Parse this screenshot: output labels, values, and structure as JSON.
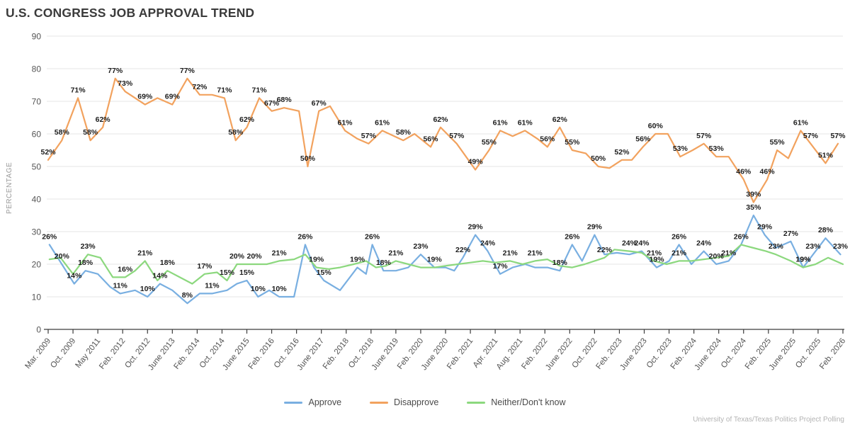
{
  "title": "U.S. CONGRESS JOB APPROVAL TREND",
  "footer": "University of Texas/Texas Politics Project Polling",
  "chart_data": {
    "type": "line",
    "title": "U.S. CONGRESS JOB APPROVAL TREND",
    "ylabel": "PERCENTAGE",
    "ylim": [
      0,
      90
    ],
    "grid": "horizontal",
    "legend_position": "bottom-center",
    "y_ticks": [
      0,
      10,
      20,
      30,
      40,
      50,
      60,
      70,
      80,
      90
    ],
    "x_tick_labels": [
      "Mar. 2009",
      "Oct. 2009",
      "May 2011",
      "Feb. 2012",
      "Oct. 2012",
      "June 2013",
      "Feb. 2014",
      "Oct. 2014",
      "June 2015",
      "Feb. 2016",
      "Oct. 2016",
      "June 2017",
      "Feb. 2018",
      "Oct. 2018",
      "June 2019",
      "Feb. 2020",
      "June 2020",
      "Feb. 2021",
      "Apr. 2021",
      "Aug. 2021",
      "Feb. 2022",
      "June 2022",
      "Oct. 2022",
      "Feb. 2023",
      "June 2023",
      "Oct. 2023",
      "Feb. 2024",
      "June 2024",
      "Oct. 2024",
      "Feb. 2025",
      "June 2025",
      "Oct. 2025",
      "Feb. 2026"
    ],
    "x_axis_note": "points given as [tick_position, percent_value, has_label]",
    "series": [
      {
        "name": "Approve",
        "color": "#79AFE1",
        "labeled_values": [
          26,
          20,
          14,
          18,
          11,
          10,
          14,
          8,
          11,
          15,
          10,
          26,
          15,
          19,
          26,
          18,
          23,
          19,
          22,
          29,
          24,
          17,
          18,
          26,
          29,
          24,
          19,
          26,
          24,
          20,
          21,
          35,
          29,
          27,
          19,
          23,
          28,
          23
        ],
        "points": [
          [
            0.05,
            26,
            1
          ],
          [
            0.55,
            20,
            1
          ],
          [
            1.05,
            14,
            1
          ],
          [
            1.5,
            18,
            1
          ],
          [
            2,
            17,
            0
          ],
          [
            2.5,
            13,
            0
          ],
          [
            2.9,
            11,
            1
          ],
          [
            3.5,
            12,
            0
          ],
          [
            4,
            10,
            1
          ],
          [
            4.5,
            14,
            1
          ],
          [
            5,
            12,
            0
          ],
          [
            5.6,
            8,
            1
          ],
          [
            6.1,
            11,
            0
          ],
          [
            6.6,
            11,
            1
          ],
          [
            7.2,
            12,
            0
          ],
          [
            7.6,
            14,
            0
          ],
          [
            8,
            15,
            1
          ],
          [
            8.45,
            10,
            1
          ],
          [
            8.9,
            12,
            0
          ],
          [
            9.3,
            10,
            1
          ],
          [
            9.9,
            10,
            0
          ],
          [
            10.35,
            26,
            1
          ],
          [
            10.7,
            19,
            0
          ],
          [
            11.1,
            15,
            1
          ],
          [
            11.75,
            12,
            0
          ],
          [
            12.45,
            19,
            1
          ],
          [
            12.8,
            17,
            0
          ],
          [
            13.05,
            26,
            1
          ],
          [
            13.5,
            18,
            1
          ],
          [
            14,
            18,
            0
          ],
          [
            14.5,
            19,
            0
          ],
          [
            15,
            23,
            1
          ],
          [
            15.55,
            19,
            1
          ],
          [
            16,
            19,
            0
          ],
          [
            16.35,
            18,
            0
          ],
          [
            16.7,
            22,
            1
          ],
          [
            17.2,
            29,
            1
          ],
          [
            17.7,
            24,
            1
          ],
          [
            18.2,
            17,
            1
          ],
          [
            18.7,
            19,
            0
          ],
          [
            19.2,
            20,
            0
          ],
          [
            19.6,
            19,
            0
          ],
          [
            20.1,
            19,
            0
          ],
          [
            20.6,
            18,
            1
          ],
          [
            21.1,
            26,
            1
          ],
          [
            21.5,
            21,
            0
          ],
          [
            22,
            29,
            1
          ],
          [
            22.4,
            23,
            0
          ],
          [
            22.9,
            23.5,
            0
          ],
          [
            23.4,
            23,
            0
          ],
          [
            23.9,
            24,
            1
          ],
          [
            24.5,
            19,
            1
          ],
          [
            25,
            21,
            0
          ],
          [
            25.4,
            26,
            1
          ],
          [
            25.9,
            20,
            0
          ],
          [
            26.4,
            24,
            1
          ],
          [
            26.9,
            20,
            1
          ],
          [
            27.4,
            21,
            1
          ],
          [
            27.9,
            26,
            0
          ],
          [
            28.4,
            35,
            1
          ],
          [
            28.85,
            29,
            1
          ],
          [
            29.3,
            25,
            0
          ],
          [
            29.9,
            27,
            1
          ],
          [
            30.4,
            19,
            1
          ],
          [
            30.8,
            23,
            1
          ],
          [
            31.3,
            28,
            1
          ],
          [
            31.9,
            23,
            1
          ]
        ]
      },
      {
        "name": "Disapprove",
        "color": "#F2A25E",
        "labeled_values": [
          52,
          58,
          71,
          58,
          62,
          77,
          73,
          69,
          69,
          77,
          72,
          71,
          58,
          62,
          71,
          67,
          68,
          50,
          67,
          61,
          57,
          61,
          58,
          56,
          62,
          57,
          49,
          55,
          61,
          61,
          56,
          62,
          55,
          50,
          52,
          56,
          60,
          53,
          57,
          53,
          46,
          39,
          46,
          55,
          61,
          57,
          51,
          57
        ],
        "points": [
          [
            0,
            52,
            1
          ],
          [
            0.55,
            58,
            1
          ],
          [
            1.2,
            71,
            1
          ],
          [
            1.7,
            58,
            1
          ],
          [
            2.2,
            62,
            1
          ],
          [
            2.7,
            77,
            1
          ],
          [
            3.1,
            73,
            1
          ],
          [
            3.9,
            69,
            1
          ],
          [
            4.4,
            71,
            0
          ],
          [
            5,
            69,
            1
          ],
          [
            5.6,
            77,
            1
          ],
          [
            6.1,
            72,
            1
          ],
          [
            6.6,
            72,
            0
          ],
          [
            7.1,
            71,
            1
          ],
          [
            7.55,
            58,
            1
          ],
          [
            8,
            62,
            1
          ],
          [
            8.5,
            71,
            1
          ],
          [
            9,
            67,
            1
          ],
          [
            9.5,
            68,
            1
          ],
          [
            10.1,
            67,
            0
          ],
          [
            10.45,
            50,
            1
          ],
          [
            10.9,
            67,
            1
          ],
          [
            11.35,
            68.5,
            0
          ],
          [
            11.95,
            61,
            1
          ],
          [
            12.45,
            58.5,
            0
          ],
          [
            12.9,
            57,
            1
          ],
          [
            13.45,
            61,
            1
          ],
          [
            14.3,
            58,
            1
          ],
          [
            14.75,
            60,
            0
          ],
          [
            15.4,
            56,
            1
          ],
          [
            15.8,
            62,
            1
          ],
          [
            16.45,
            57,
            1
          ],
          [
            17.2,
            49,
            1
          ],
          [
            17.75,
            55,
            1
          ],
          [
            18.2,
            61,
            1
          ],
          [
            18.7,
            59.3,
            0
          ],
          [
            19.2,
            61,
            1
          ],
          [
            19.7,
            58.5,
            0
          ],
          [
            20.1,
            56,
            1
          ],
          [
            20.6,
            62,
            1
          ],
          [
            21.1,
            55,
            1
          ],
          [
            21.65,
            54,
            0
          ],
          [
            22.15,
            50,
            1
          ],
          [
            22.6,
            49.5,
            0
          ],
          [
            23.1,
            52,
            1
          ],
          [
            23.5,
            52,
            0
          ],
          [
            23.95,
            56,
            1
          ],
          [
            24.45,
            60,
            1
          ],
          [
            24.95,
            60,
            0
          ],
          [
            25.45,
            53,
            1
          ],
          [
            25.95,
            55,
            0
          ],
          [
            26.4,
            57,
            1
          ],
          [
            26.9,
            53,
            1
          ],
          [
            27.4,
            53,
            0
          ],
          [
            28,
            46,
            1
          ],
          [
            28.4,
            39,
            1
          ],
          [
            28.95,
            46,
            1
          ],
          [
            29.35,
            55,
            1
          ],
          [
            29.8,
            52.5,
            0
          ],
          [
            30.3,
            61,
            1
          ],
          [
            30.7,
            57,
            1
          ],
          [
            31.3,
            51,
            1
          ],
          [
            31.8,
            57,
            1
          ]
        ]
      },
      {
        "name": "Neither/Don't know",
        "color": "#8CD87E",
        "labeled_values": [
          23,
          16,
          21,
          18,
          17,
          15,
          20,
          20,
          21,
          19,
          21,
          22,
          24,
          21,
          21,
          26,
          23,
          19
        ],
        "points": [
          [
            0.05,
            21.5,
            0
          ],
          [
            0.5,
            22,
            0
          ],
          [
            1,
            17,
            0
          ],
          [
            1.6,
            23,
            1
          ],
          [
            2.1,
            22,
            0
          ],
          [
            2.6,
            16,
            0
          ],
          [
            3.1,
            16,
            1
          ],
          [
            3.5,
            18,
            0
          ],
          [
            3.9,
            21,
            1
          ],
          [
            4.4,
            15,
            0
          ],
          [
            4.8,
            18,
            1
          ],
          [
            5.3,
            16,
            0
          ],
          [
            5.8,
            14,
            0
          ],
          [
            6.3,
            17,
            1
          ],
          [
            6.8,
            17.5,
            0
          ],
          [
            7.2,
            15,
            1
          ],
          [
            7.6,
            20,
            1
          ],
          [
            8.3,
            20,
            1
          ],
          [
            8.8,
            20,
            0
          ],
          [
            9.3,
            21,
            1
          ],
          [
            9.9,
            21.5,
            0
          ],
          [
            10.35,
            23,
            0
          ],
          [
            10.8,
            19,
            1
          ],
          [
            11.3,
            18.5,
            0
          ],
          [
            11.75,
            19,
            0
          ],
          [
            12.3,
            20,
            0
          ],
          [
            12.8,
            21,
            0
          ],
          [
            13.2,
            19,
            0
          ],
          [
            13.6,
            19.5,
            0
          ],
          [
            14,
            21,
            1
          ],
          [
            14.5,
            20,
            0
          ],
          [
            15,
            19,
            0
          ],
          [
            15.55,
            19,
            0
          ],
          [
            16,
            19.5,
            0
          ],
          [
            16.5,
            20,
            0
          ],
          [
            17,
            20.5,
            0
          ],
          [
            17.5,
            21,
            0
          ],
          [
            18,
            20.5,
            0
          ],
          [
            18.6,
            21,
            1
          ],
          [
            19.1,
            20,
            0
          ],
          [
            19.6,
            21,
            1
          ],
          [
            20.1,
            21.5,
            0
          ],
          [
            20.6,
            19.5,
            0
          ],
          [
            21.1,
            19,
            0
          ],
          [
            21.6,
            20,
            0
          ],
          [
            22,
            21,
            0
          ],
          [
            22.4,
            22,
            1
          ],
          [
            22.8,
            24.5,
            0
          ],
          [
            23.4,
            24,
            1
          ],
          [
            23.9,
            23.5,
            0
          ],
          [
            24.4,
            21,
            1
          ],
          [
            24.9,
            20,
            0
          ],
          [
            25.4,
            21,
            1
          ],
          [
            25.9,
            21,
            0
          ],
          [
            26.4,
            21.5,
            0
          ],
          [
            26.9,
            22,
            0
          ],
          [
            27.4,
            22.5,
            0
          ],
          [
            27.9,
            26,
            1
          ],
          [
            28.4,
            25,
            0
          ],
          [
            28.9,
            24,
            0
          ],
          [
            29.3,
            23,
            1
          ],
          [
            29.9,
            21,
            0
          ],
          [
            30.4,
            19,
            1
          ],
          [
            30.9,
            20,
            0
          ],
          [
            31.4,
            22,
            0
          ],
          [
            32,
            20,
            0
          ]
        ]
      }
    ]
  },
  "legend": {
    "items": [
      {
        "label": "Approve"
      },
      {
        "label": "Disapprove"
      },
      {
        "label": "Neither/Don't know"
      }
    ]
  },
  "colors": {
    "approve": "#79AFE1",
    "disapprove": "#F2A25E",
    "neither": "#8CD87E",
    "gridline": "#e4e4e4",
    "axis": "#3c3c3c",
    "tick_text": "#555555",
    "point_label": "#1c1c1c"
  }
}
